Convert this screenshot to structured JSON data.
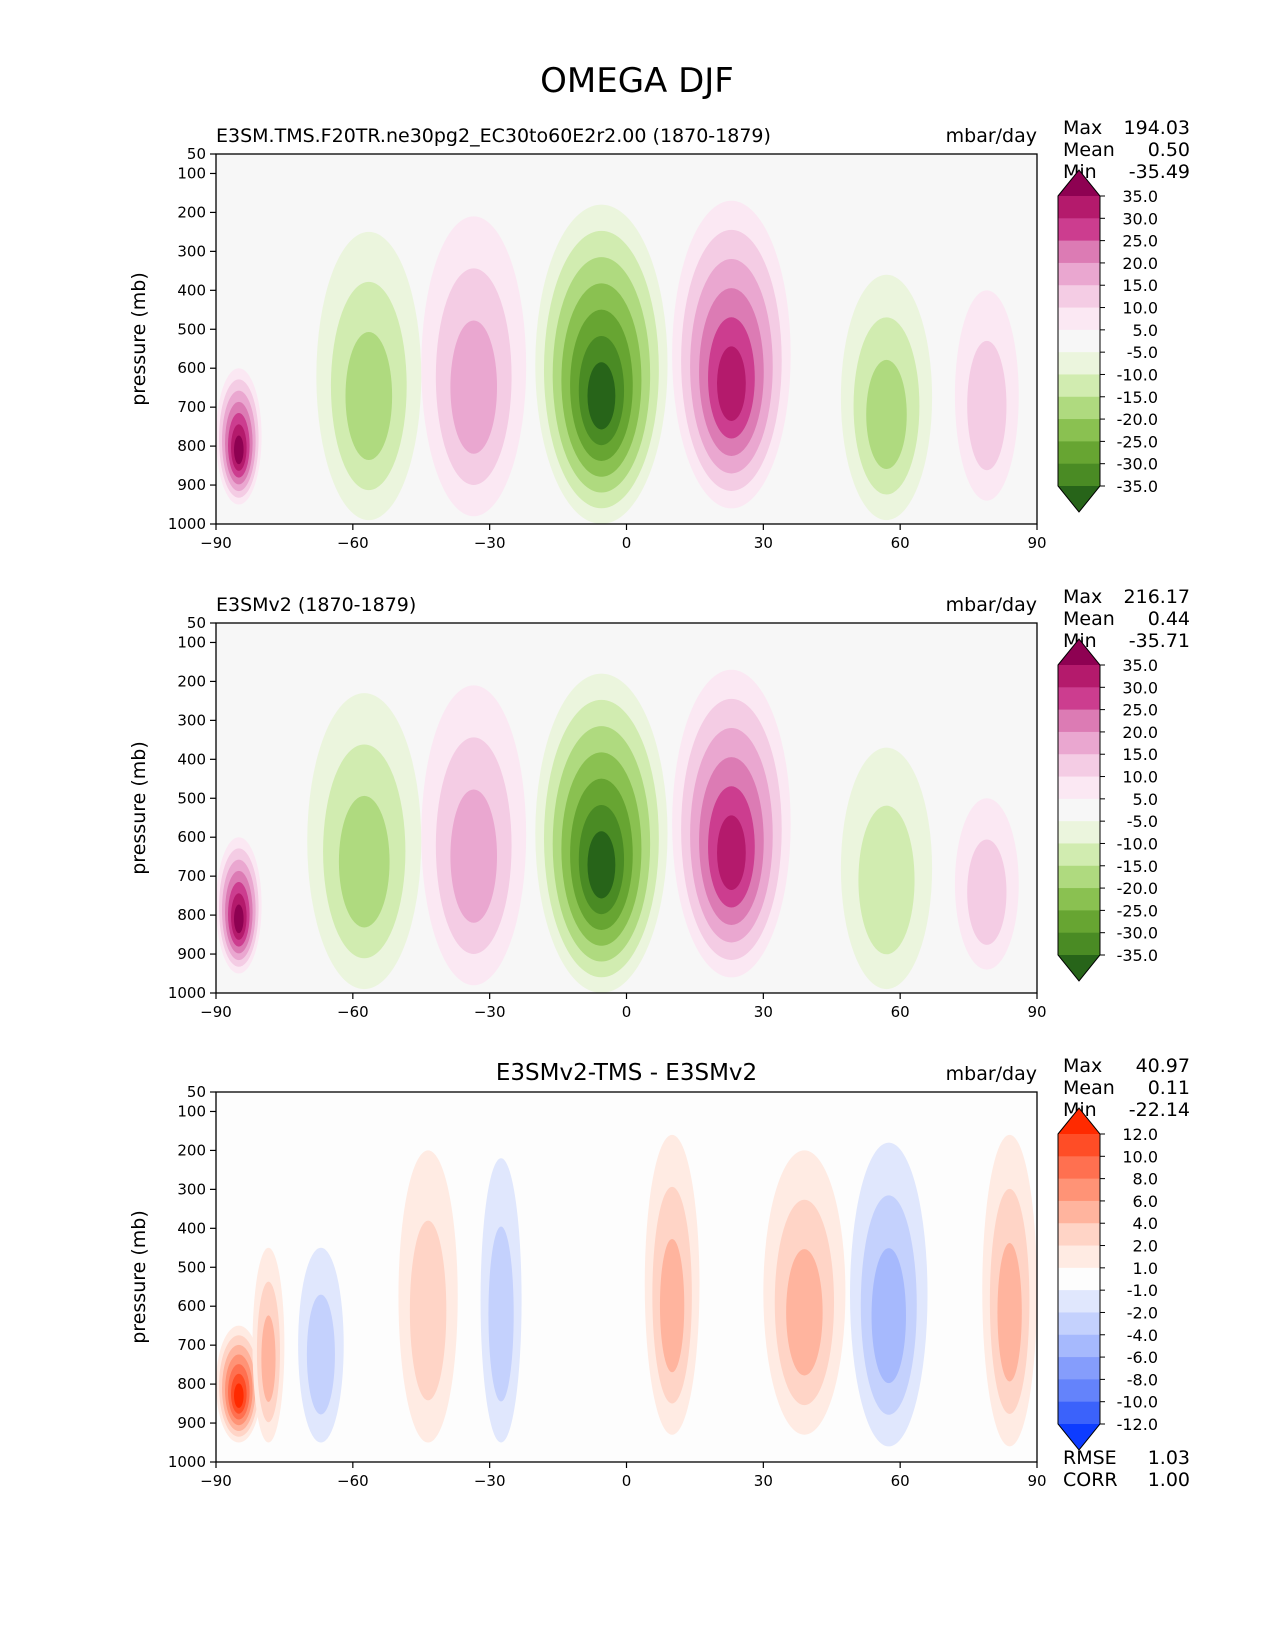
{
  "figure": {
    "title": "OMEGA DJF"
  },
  "chart_data": [
    {
      "type": "contourf",
      "title": "E3SM.TMS.F20TR.ne30pg2_EC30to60E2r2.00 (1870-1879)",
      "units": "mbar/day",
      "xlabel": "",
      "ylabel": "pressure (mb)",
      "xlim": [
        -90,
        90
      ],
      "ylim": [
        1000,
        50
      ],
      "xticks": [
        "−90",
        "−60",
        "−30",
        "0",
        "30",
        "60",
        "90"
      ],
      "yticks": [
        "50",
        "100",
        "200",
        "300",
        "400",
        "500",
        "600",
        "700",
        "800",
        "900",
        "1000"
      ],
      "stats": [
        {
          "label": "Max",
          "value": "194.03"
        },
        {
          "label": "Mean",
          "value": "0.50"
        },
        {
          "label": "Min",
          "value": "-35.49"
        }
      ],
      "colorbar": {
        "labels": [
          "35.0",
          "30.0",
          "25.0",
          "20.0",
          "15.0",
          "10.0",
          "5.0",
          "-5.0",
          "-10.0",
          "-15.0",
          "-20.0",
          "-25.0",
          "-30.0",
          "-35.0"
        ],
        "colors": [
          "#8e0152",
          "#b41a6c",
          "#cc3d8f",
          "#dc7bb4",
          "#eaa7d0",
          "#f4cce4",
          "#fbe8f3",
          "#f7f7f7",
          "#ebf5dd",
          "#d1ecb0",
          "#afda7f",
          "#8ac151",
          "#67a532",
          "#4a8b24",
          "#276419"
        ]
      },
      "field": {
        "background": "#f7f7f7",
        "features": [
          {
            "name": "ITCZ ascent (upward motion)",
            "lat_range": [
              -20,
              9
            ],
            "p_range": [
              180,
              1000
            ],
            "peak": -35,
            "color_key": "green"
          },
          {
            "name": "Northern Hadley descent",
            "lat_range": [
              10,
              36
            ],
            "p_range": [
              170,
              960
            ],
            "peak": 30,
            "color_key": "pink"
          },
          {
            "name": "Southern Hadley descent",
            "lat_range": [
              -45,
              -22
            ],
            "p_range": [
              210,
              980
            ],
            "peak": 15,
            "color_key": "pink"
          },
          {
            "name": "Southern mid-latitude ascent",
            "lat_range": [
              -68,
              -45
            ],
            "p_range": [
              250,
              990
            ],
            "peak": -15,
            "color_key": "green"
          },
          {
            "name": "Northern mid-latitude ascent",
            "lat_range": [
              47,
              67
            ],
            "p_range": [
              360,
              990
            ],
            "peak": -15,
            "color_key": "green"
          },
          {
            "name": "Antarctic topography descent",
            "lat_range": [
              -90,
              -80
            ],
            "p_range": [
              600,
              950
            ],
            "peak": 35,
            "color_key": "pink"
          },
          {
            "name": "Arctic weak descent",
            "lat_range": [
              72,
              86
            ],
            "p_range": [
              400,
              940
            ],
            "peak": 10,
            "color_key": "pink"
          }
        ]
      }
    },
    {
      "type": "contourf",
      "title": "E3SMv2 (1870-1879)",
      "units": "mbar/day",
      "xlabel": "",
      "ylabel": "pressure (mb)",
      "xlim": [
        -90,
        90
      ],
      "ylim": [
        1000,
        50
      ],
      "xticks": [
        "−90",
        "−60",
        "−30",
        "0",
        "30",
        "60",
        "90"
      ],
      "yticks": [
        "50",
        "100",
        "200",
        "300",
        "400",
        "500",
        "600",
        "700",
        "800",
        "900",
        "1000"
      ],
      "stats": [
        {
          "label": "Max",
          "value": "216.17"
        },
        {
          "label": "Mean",
          "value": "0.44"
        },
        {
          "label": "Min",
          "value": "-35.71"
        }
      ],
      "colorbar": {
        "labels": [
          "35.0",
          "30.0",
          "25.0",
          "20.0",
          "15.0",
          "10.0",
          "5.0",
          "-5.0",
          "-10.0",
          "-15.0",
          "-20.0",
          "-25.0",
          "-30.0",
          "-35.0"
        ],
        "colors": [
          "#8e0152",
          "#b41a6c",
          "#cc3d8f",
          "#dc7bb4",
          "#eaa7d0",
          "#f4cce4",
          "#fbe8f3",
          "#f7f7f7",
          "#ebf5dd",
          "#d1ecb0",
          "#afda7f",
          "#8ac151",
          "#67a532",
          "#4a8b24",
          "#276419"
        ]
      },
      "field": {
        "background": "#f7f7f7",
        "features": [
          {
            "name": "ITCZ ascent (upward motion)",
            "lat_range": [
              -20,
              9
            ],
            "p_range": [
              180,
              1000
            ],
            "peak": -35,
            "color_key": "green"
          },
          {
            "name": "Northern Hadley descent",
            "lat_range": [
              10,
              36
            ],
            "p_range": [
              170,
              960
            ],
            "peak": 30,
            "color_key": "pink"
          },
          {
            "name": "Southern Hadley descent",
            "lat_range": [
              -45,
              -22
            ],
            "p_range": [
              210,
              980
            ],
            "peak": 15,
            "color_key": "pink"
          },
          {
            "name": "Southern mid-latitude ascent",
            "lat_range": [
              -70,
              -45
            ],
            "p_range": [
              230,
              990
            ],
            "peak": -15,
            "color_key": "green"
          },
          {
            "name": "Northern mid-latitude ascent",
            "lat_range": [
              47,
              67
            ],
            "p_range": [
              370,
              990
            ],
            "peak": -10,
            "color_key": "green"
          },
          {
            "name": "Antarctic topography descent",
            "lat_range": [
              -90,
              -80
            ],
            "p_range": [
              600,
              950
            ],
            "peak": 35,
            "color_key": "pink"
          },
          {
            "name": "Arctic weak descent",
            "lat_range": [
              72,
              86
            ],
            "p_range": [
              500,
              940
            ],
            "peak": 10,
            "color_key": "pink"
          }
        ]
      }
    },
    {
      "type": "contourf",
      "title": "E3SMv2-TMS - E3SMv2",
      "units": "mbar/day",
      "xlabel": "",
      "ylabel": "pressure (mb)",
      "xlim": [
        -90,
        90
      ],
      "ylim": [
        1000,
        50
      ],
      "xticks": [
        "−90",
        "−60",
        "−30",
        "0",
        "30",
        "60",
        "90"
      ],
      "yticks": [
        "50",
        "100",
        "200",
        "300",
        "400",
        "500",
        "600",
        "700",
        "800",
        "900",
        "1000"
      ],
      "stats": [
        {
          "label": "Max",
          "value": "40.97"
        },
        {
          "label": "Mean",
          "value": "0.11"
        },
        {
          "label": "Min",
          "value": "-22.14"
        }
      ],
      "metrics": [
        {
          "label": "RMSE",
          "value": "1.03"
        },
        {
          "label": "CORR",
          "value": "1.00"
        }
      ],
      "colorbar": {
        "labels": [
          "12.0",
          "10.0",
          "8.0",
          "6.0",
          "4.0",
          "2.0",
          "1.0",
          "-1.0",
          "-2.0",
          "-4.0",
          "-6.0",
          "-8.0",
          "-10.0",
          "-12.0"
        ],
        "colors": [
          "#ff2a00",
          "#ff4d26",
          "#ff7050",
          "#ff9376",
          "#ffb49e",
          "#ffd4c6",
          "#ffebe3",
          "#fdfdfd",
          "#e0e7fd",
          "#c4d1fd",
          "#a6b9fd",
          "#859dfc",
          "#6483fb",
          "#3b62fb",
          "#0d3cff"
        ]
      },
      "field": {
        "background": "#fdfdfd",
        "features": [
          {
            "name": "Antarctic positive difference",
            "lat_range": [
              -90,
              -80
            ],
            "p_range": [
              650,
              950
            ],
            "peak": 12,
            "color_key": "red"
          },
          {
            "name": "Southern high-latitude positive",
            "lat_range": [
              -82,
              -75
            ],
            "p_range": [
              450,
              950
            ],
            "peak": 4,
            "color_key": "red"
          },
          {
            "name": "Southern mid-latitude negative",
            "lat_range": [
              -72,
              -62
            ],
            "p_range": [
              450,
              950
            ],
            "peak": -2,
            "color_key": "blue"
          },
          {
            "name": "Subtropical positive (SH)",
            "lat_range": [
              -50,
              -37
            ],
            "p_range": [
              200,
              950
            ],
            "peak": 2,
            "color_key": "red"
          },
          {
            "name": "Subtropical negative (SH)",
            "lat_range": [
              -32,
              -23
            ],
            "p_range": [
              220,
              950
            ],
            "peak": -2,
            "color_key": "blue"
          },
          {
            "name": "Equatorial positive",
            "lat_range": [
              4,
              16
            ],
            "p_range": [
              160,
              930
            ],
            "peak": 4,
            "color_key": "red"
          },
          {
            "name": "Subtropical positive (NH)",
            "lat_range": [
              30,
              48
            ],
            "p_range": [
              200,
              930
            ],
            "peak": 4,
            "color_key": "red"
          },
          {
            "name": "Northern mid-latitude negative",
            "lat_range": [
              49,
              66
            ],
            "p_range": [
              180,
              960
            ],
            "peak": -4,
            "color_key": "blue"
          },
          {
            "name": "Northern high-latitude positive",
            "lat_range": [
              78,
              90
            ],
            "p_range": [
              160,
              960
            ],
            "peak": 4,
            "color_key": "red"
          }
        ]
      }
    }
  ]
}
